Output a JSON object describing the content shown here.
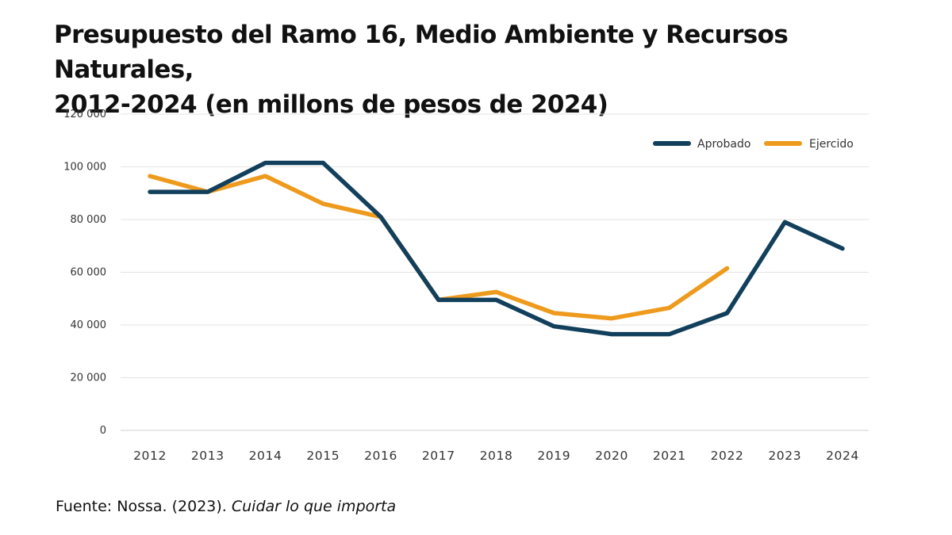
{
  "chart_data": {
    "type": "line",
    "title_lines": [
      "Presupuesto del Ramo 16, Medio Ambiente y Recursos Naturales,",
      "2012-2024 (en millons de pesos de 2024)"
    ],
    "categories": [
      "2012",
      "2013",
      "2014",
      "2015",
      "2016",
      "2017",
      "2018",
      "2019",
      "2020",
      "2021",
      "2022",
      "2023",
      "2024"
    ],
    "ylim": [
      0,
      120000
    ],
    "yticks": [
      0,
      20000,
      40000,
      60000,
      80000,
      100000,
      120000
    ],
    "ytick_labels": [
      "0",
      "20 000",
      "40 000",
      "60 000",
      "80 000",
      "100 000",
      "120 000"
    ],
    "grid": true,
    "legend_position": "top-right",
    "series": [
      {
        "name": "Aprobado",
        "color": "#12405c",
        "values": [
          90500,
          90500,
          101500,
          101500,
          81000,
          49500,
          49500,
          39500,
          36500,
          36500,
          44500,
          79000,
          69000
        ]
      },
      {
        "name": "Ejercido",
        "color": "#ee9a1d",
        "values": [
          96500,
          90500,
          96500,
          86000,
          81000,
          49500,
          52500,
          44500,
          42500,
          46500,
          61500,
          null,
          null
        ]
      }
    ]
  },
  "source": {
    "prefix": "Fuente: Nossa. (2023). ",
    "work": "Cuidar lo que importa"
  }
}
